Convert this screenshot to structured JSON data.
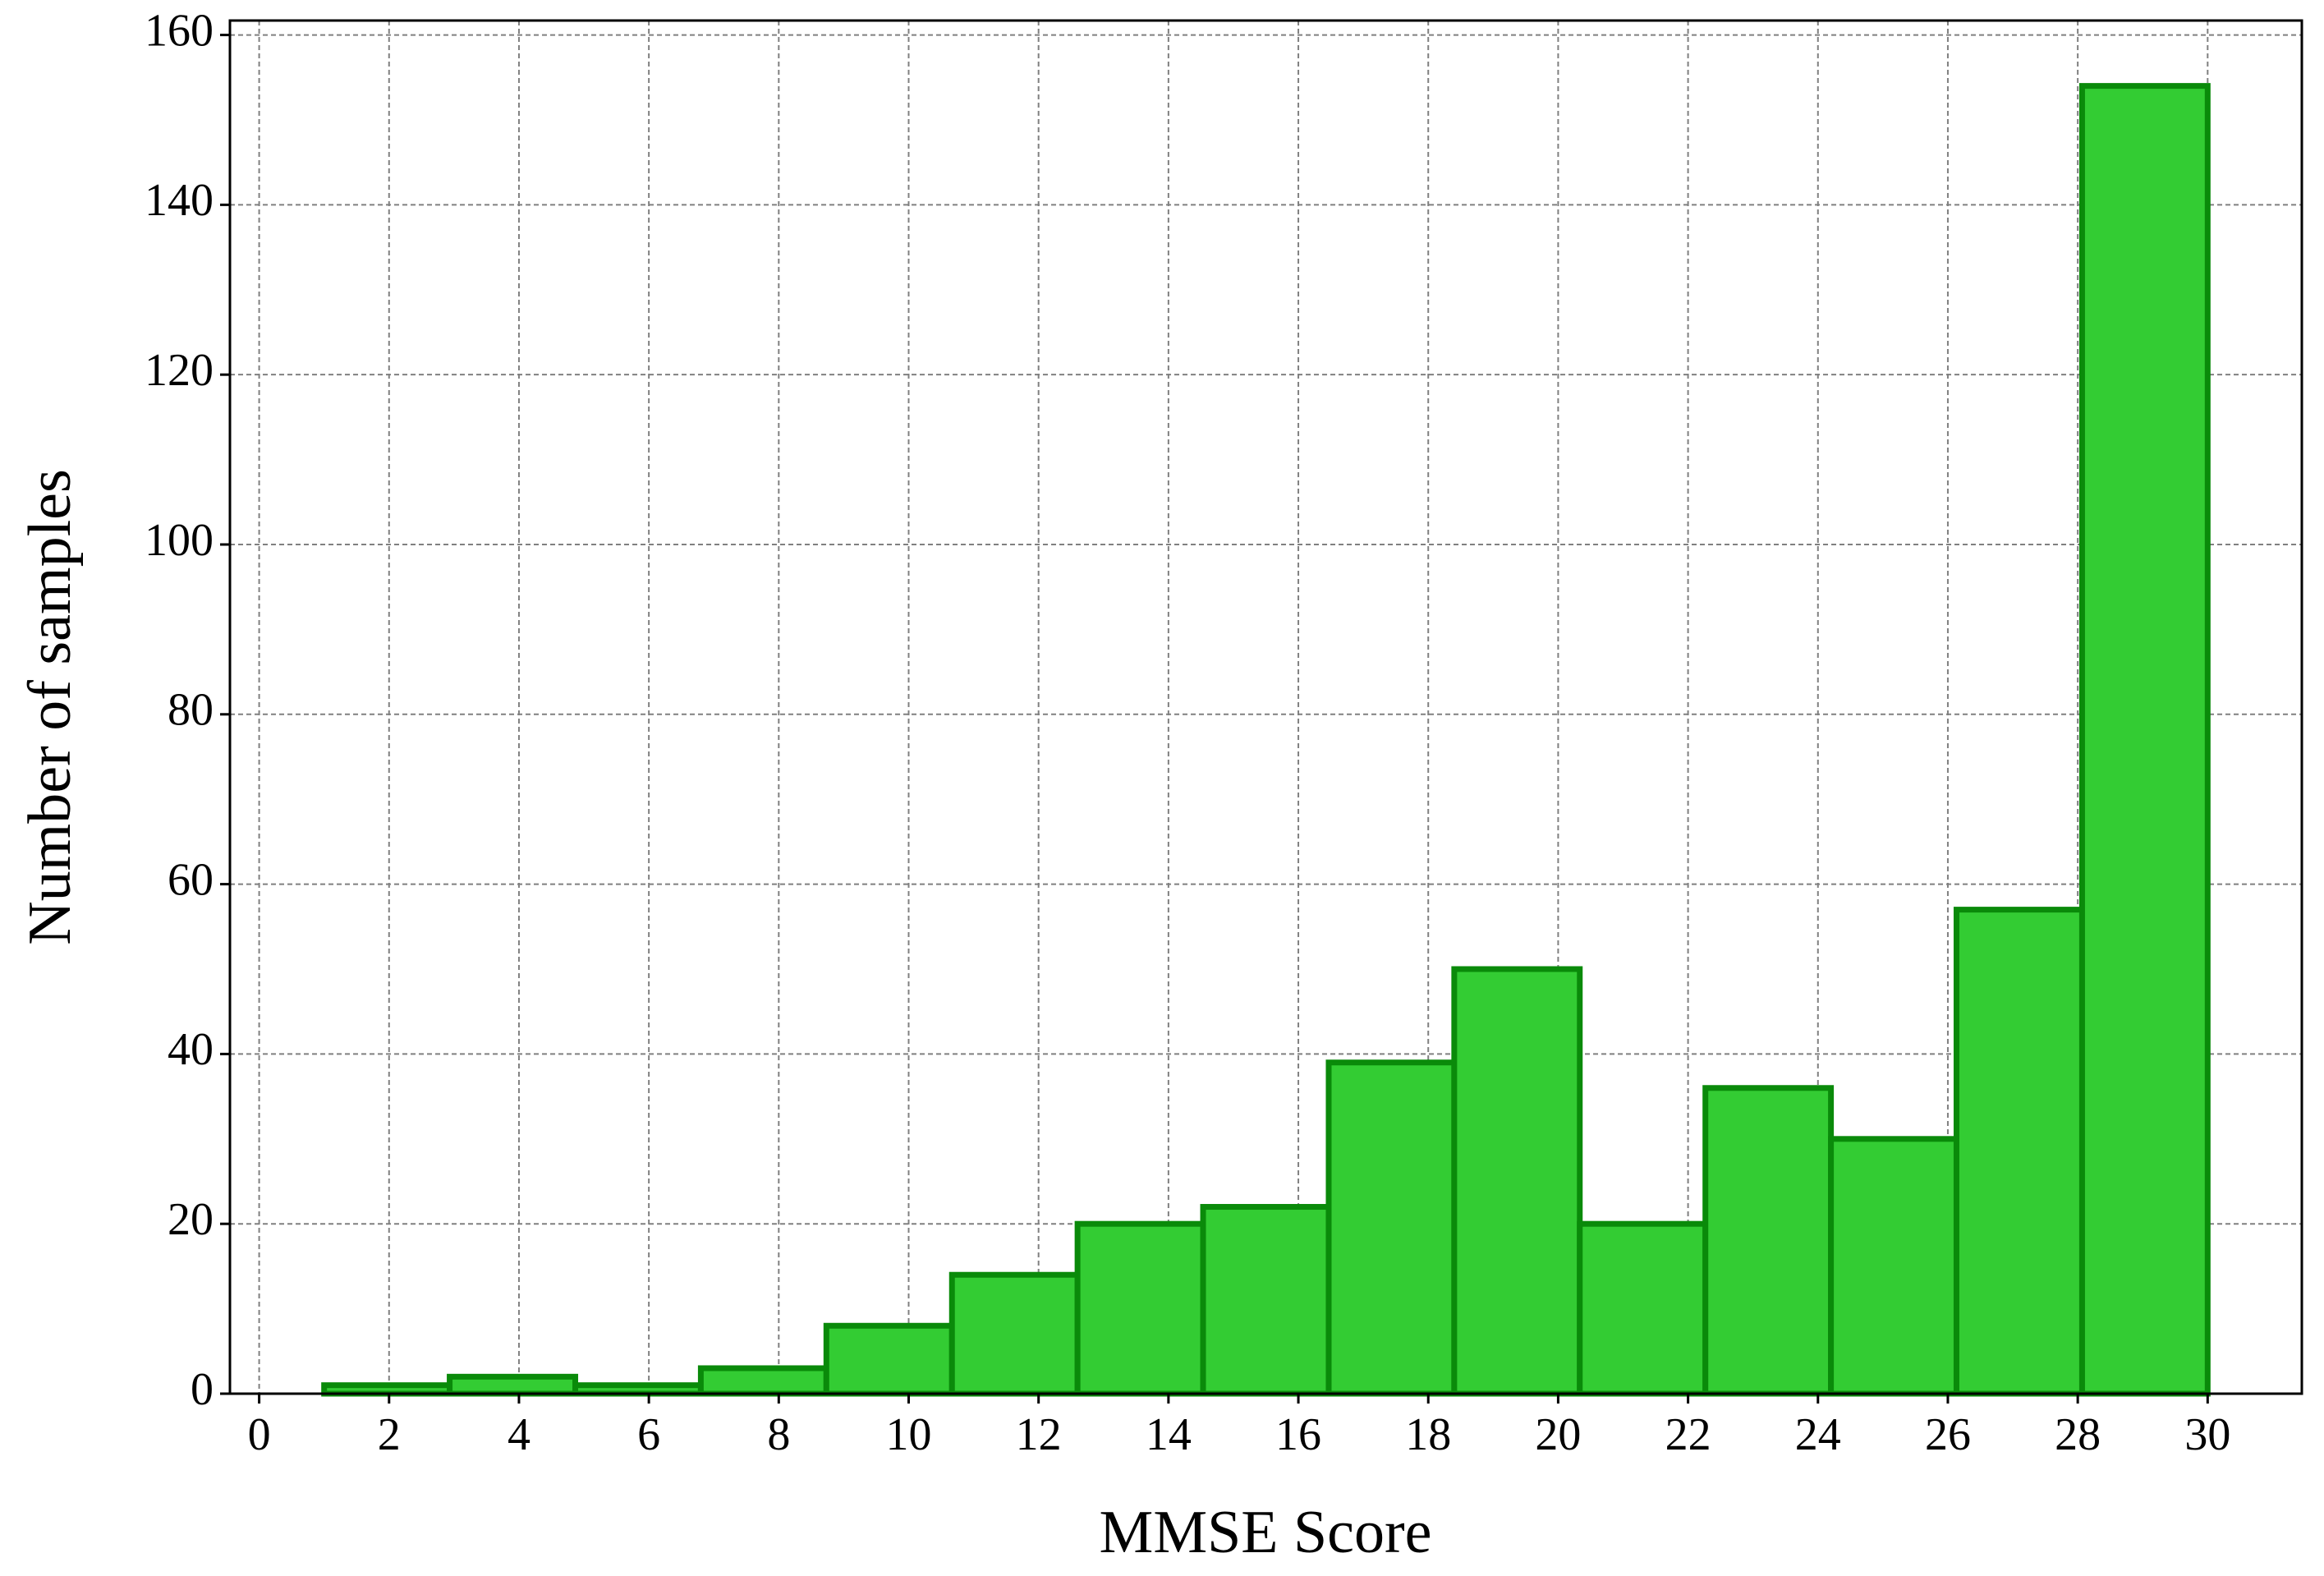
{
  "chart_data": {
    "type": "histogram",
    "x_label": "MMSE Score",
    "y_label": "Number of samples",
    "bins": [
      1,
      2.933,
      4.867,
      6.8,
      8.733,
      10.667,
      12.6,
      14.533,
      16.467,
      18.4,
      20.333,
      22.267,
      24.2,
      26.133,
      28.067,
      30
    ],
    "values": [
      1,
      2,
      1,
      3,
      8,
      14,
      20,
      22,
      39,
      50,
      20,
      36,
      30,
      57,
      154
    ],
    "color": "#33cc33",
    "edge_color": "#0a8a0a",
    "xlim": [
      -0.45,
      31.45
    ],
    "ylim": [
      0,
      161.7
    ],
    "xticks": [
      0,
      2,
      4,
      6,
      8,
      10,
      12,
      14,
      16,
      18,
      20,
      22,
      24,
      26,
      28,
      30
    ],
    "yticks": [
      0,
      20,
      40,
      60,
      80,
      100,
      120,
      140,
      160
    ],
    "grid": true
  }
}
